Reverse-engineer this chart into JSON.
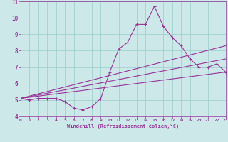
{
  "xlabel": "Windchill (Refroidissement éolien,°C)",
  "xlim": [
    0,
    23
  ],
  "ylim": [
    4,
    11
  ],
  "yticks": [
    4,
    5,
    6,
    7,
    8,
    9,
    10,
    11
  ],
  "xticks": [
    0,
    1,
    2,
    3,
    4,
    5,
    6,
    7,
    8,
    9,
    10,
    11,
    12,
    13,
    14,
    15,
    16,
    17,
    18,
    19,
    20,
    21,
    22,
    23
  ],
  "bg_color": "#cce8e8",
  "line_color": "#993399",
  "grid_color": "#99cccc",
  "line1_x": [
    0,
    1,
    2,
    3,
    4,
    5,
    6,
    7,
    8,
    9,
    10,
    11,
    12,
    13,
    14,
    15,
    16,
    17,
    18,
    19,
    20,
    21,
    22,
    23
  ],
  "line1_y": [
    5.1,
    5.0,
    5.1,
    5.1,
    5.1,
    4.9,
    4.5,
    4.4,
    4.6,
    5.1,
    6.7,
    8.1,
    8.5,
    9.6,
    9.6,
    10.7,
    9.5,
    8.8,
    8.3,
    7.5,
    7.0,
    7.0,
    7.2,
    6.7
  ],
  "line2_x": [
    0,
    23
  ],
  "line2_y": [
    5.1,
    8.3
  ],
  "line3_x": [
    0,
    23
  ],
  "line3_y": [
    5.1,
    7.5
  ],
  "line4_x": [
    0,
    23
  ],
  "line4_y": [
    5.1,
    6.7
  ]
}
